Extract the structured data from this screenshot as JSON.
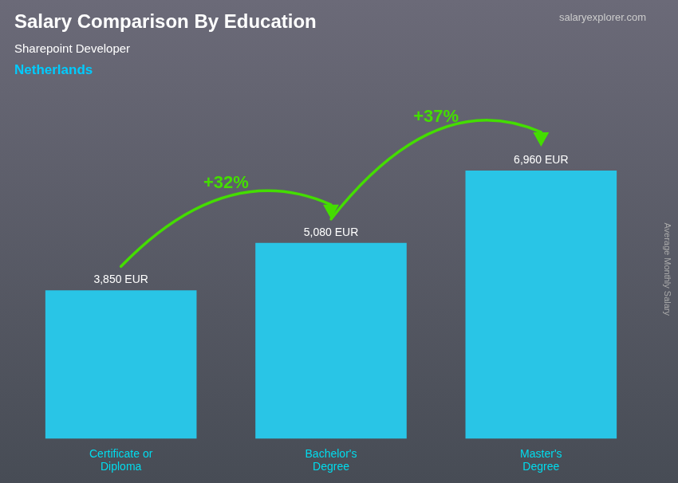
{
  "chart_data": {
    "type": "bar",
    "title": "Salary Comparison By Education",
    "subtitle": "Sharepoint Developer",
    "annotations": [
      "Netherlands",
      "salaryexplorer.com",
      "+32%",
      "+37%"
    ],
    "ylabel": "Average Monthly Salary",
    "categories": [
      "Certificate or\nDiploma",
      "Bachelor's\nDegree",
      "Master's\nDegree"
    ],
    "values": [
      3850,
      5080,
      6960
    ],
    "value_labels": [
      "3,850 EUR",
      "5,080 EUR",
      "6,960 EUR"
    ],
    "data_labels": true,
    "color": "#29c5e6",
    "ylim": [
      0,
      8800
    ],
    "grid": false,
    "tick_labels": "x"
  }
}
